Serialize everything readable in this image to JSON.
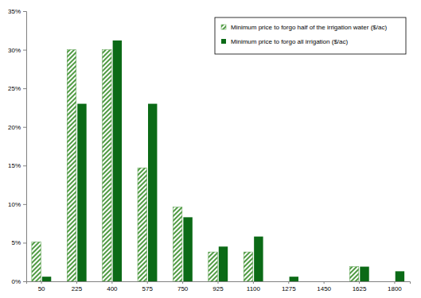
{
  "chart_data": {
    "type": "bar",
    "categories": [
      "50",
      "225",
      "400",
      "575",
      "750",
      "925",
      "1100",
      "1275",
      "1450",
      "1625",
      "1800"
    ],
    "series": [
      {
        "name": "Minimum price to forgo half of the irrigation water ($/ac)",
        "color": "#4f9a42",
        "values": [
          5.1,
          30,
          30,
          14.7,
          9.6,
          3.8,
          3.8,
          0,
          0,
          1.9,
          0
        ]
      },
      {
        "name": "Minimum price to forgo all irrigation ($/ac)",
        "color": "#0b6a16",
        "values": [
          0.6,
          23,
          31.2,
          23,
          8.3,
          4.5,
          5.8,
          0.6,
          0,
          1.9,
          1.3
        ]
      }
    ],
    "ylim": [
      0,
      35
    ],
    "yticks": [
      {
        "value": 0,
        "label": "0%"
      },
      {
        "value": 5,
        "label": "5%"
      },
      {
        "value": 10,
        "label": "10%"
      },
      {
        "value": 15,
        "label": "15%"
      },
      {
        "value": 20,
        "label": "20%"
      },
      {
        "value": 25,
        "label": "25%"
      },
      {
        "value": 30,
        "label": "30%"
      },
      {
        "value": 35,
        "label": "35%"
      }
    ],
    "grid": false,
    "legend": "top-right"
  }
}
